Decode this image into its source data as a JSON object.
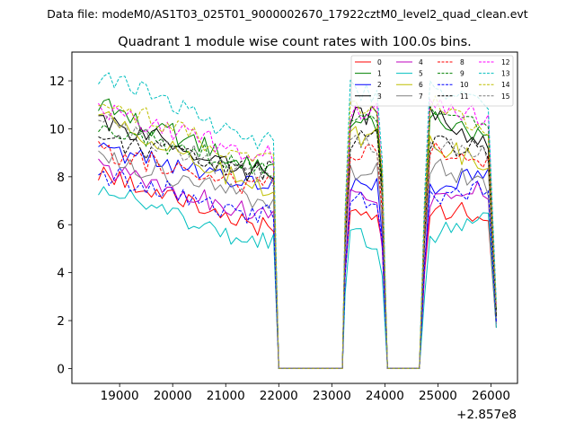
{
  "suptitle": "Data file: modeM0/AS1T03_025T01_9000002670_17922cztM0_level2_quad_clean.evt",
  "chart_data": {
    "type": "line",
    "title": "Quadrant 1 module wise count rates with 100.0s bins.",
    "xlabel": "",
    "ylabel": "",
    "x_offset_label": "+2.857e8",
    "xlim": [
      18100,
      26500
    ],
    "ylim": [
      -0.62,
      13.2
    ],
    "xticks": [
      19000,
      20000,
      21000,
      22000,
      23000,
      24000,
      25000,
      26000
    ],
    "xtick_labels": [
      "19000",
      "20000",
      "21000",
      "22000",
      "23000",
      "24000",
      "25000",
      "26000"
    ],
    "yticks": [
      0,
      2,
      4,
      6,
      8,
      10,
      12
    ],
    "ytick_labels": [
      "0",
      "2",
      "4",
      "6",
      "8",
      "10",
      "12"
    ],
    "grid": false,
    "legend_position": "top-right",
    "legend_columns": 4,
    "segments": [
      {
        "start": 18600,
        "end": 21900
      },
      {
        "start": 23250,
        "end": 23950
      },
      {
        "start": 24750,
        "end": 26100
      }
    ],
    "series": [
      {
        "name": "0",
        "color": "#ff0000",
        "dash": "solid",
        "levels": [
          8.3,
          5.9,
          6.7,
          6.7,
          6.4,
          6.3
        ]
      },
      {
        "name": "1",
        "color": "#008000",
        "dash": "solid",
        "levels": [
          11.0,
          8.5,
          10.3,
          10.6,
          9.3,
          8.5
        ]
      },
      {
        "name": "2",
        "color": "#0000ff",
        "dash": "solid",
        "levels": [
          9.3,
          7.6,
          7.7,
          7.6,
          8.3,
          7.5
        ]
      },
      {
        "name": "3",
        "color": "#000000",
        "dash": "solid",
        "levels": [
          10.4,
          8.2,
          10.6,
          10.7,
          9.2,
          8.2
        ]
      },
      {
        "name": "4",
        "color": "#bf00bf",
        "dash": "solid",
        "levels": [
          8.4,
          6.5,
          7.0,
          7.0,
          7.5,
          6.6
        ]
      },
      {
        "name": "5",
        "color": "#00bfbf",
        "dash": "solid",
        "levels": [
          7.6,
          5.3,
          5.4,
          5.5,
          6.4,
          5.6
        ]
      },
      {
        "name": "6",
        "color": "#bfbf00",
        "dash": "solid",
        "levels": [
          10.6,
          7.6,
          9.6,
          9.6,
          8.2,
          7.5
        ]
      },
      {
        "name": "7",
        "color": "#808080",
        "dash": "solid",
        "levels": [
          8.9,
          7.1,
          8.3,
          8.6,
          7.4,
          7.2
        ]
      },
      {
        "name": "8",
        "color": "#ff0000",
        "dash": "dashed",
        "levels": [
          9.1,
          7.6,
          8.9,
          9.1,
          8.4,
          7.8
        ]
      },
      {
        "name": "9",
        "color": "#008000",
        "dash": "dashed",
        "levels": [
          10.2,
          8.4,
          10.5,
          10.9,
          9.9,
          8.6
        ]
      },
      {
        "name": "10",
        "color": "#0000ff",
        "dash": "dashed",
        "levels": [
          8.2,
          6.4,
          7.2,
          7.0,
          7.6,
          6.7
        ]
      },
      {
        "name": "11",
        "color": "#000000",
        "dash": "dashed",
        "levels": [
          9.6,
          8.3,
          9.5,
          9.4,
          9.0,
          8.2
        ]
      },
      {
        "name": "12",
        "color": "#ff00ff",
        "dash": "dashed",
        "levels": [
          10.8,
          9.0,
          10.9,
          11.3,
          10.2,
          9.1
        ]
      },
      {
        "name": "13",
        "color": "#00bfbf",
        "dash": "dashed",
        "levels": [
          12.3,
          9.6,
          11.6,
          11.8,
          10.6,
          10.0
        ]
      },
      {
        "name": "14",
        "color": "#bfbf00",
        "dash": "dashed",
        "levels": [
          11.2,
          8.8,
          10.8,
          11.2,
          9.8,
          8.9
        ]
      },
      {
        "name": "15",
        "color": "#808080",
        "dash": "dashed",
        "levels": [
          10.4,
          8.0,
          9.3,
          9.6,
          8.9,
          8.2
        ]
      }
    ]
  }
}
